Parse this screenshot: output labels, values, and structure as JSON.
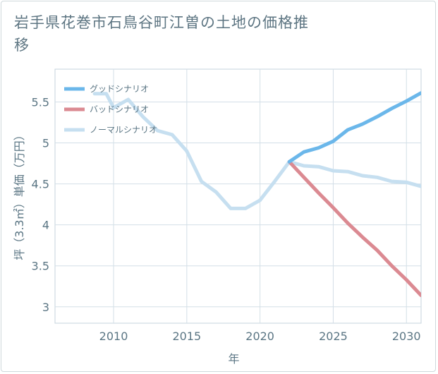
{
  "title": "岩手県花巻市石鳥谷町江曽の土地の価格推移",
  "chart_data": {
    "type": "line",
    "title": "岩手県花巻市石鳥谷町江曽の土地の価格推移",
    "xlabel": "年",
    "ylabel": "坪（3.3㎡）単価（万円）",
    "xlim": [
      2006,
      2031
    ],
    "ylim": [
      2.8,
      5.9
    ],
    "x_ticks": [
      2010,
      2015,
      2020,
      2025,
      2030
    ],
    "y_ticks": [
      3,
      3.5,
      4,
      4.5,
      5,
      5.5
    ],
    "x_tick_labels": [
      "2010",
      "2015",
      "2020",
      "2025",
      "2030"
    ],
    "y_tick_labels": [
      "3",
      "3.5",
      "4",
      "4.5",
      "5",
      "5.5"
    ],
    "grid": true,
    "legend_position": "top-left",
    "series": [
      {
        "name": "ノーマルシナリオ",
        "color": "#c6dff0",
        "x": [
          2008.7,
          2009.5,
          2010,
          2011,
          2012,
          2013,
          2014,
          2015,
          2016,
          2017,
          2018,
          2019,
          2020,
          2021,
          2022,
          2023,
          2024,
          2025,
          2026,
          2027,
          2028,
          2029,
          2030,
          2031
        ],
        "values": [
          5.6,
          5.6,
          5.43,
          5.53,
          5.32,
          5.15,
          5.1,
          4.9,
          4.53,
          4.4,
          4.2,
          4.2,
          4.3,
          4.53,
          4.77,
          4.72,
          4.71,
          4.66,
          4.65,
          4.6,
          4.58,
          4.53,
          4.52,
          4.47
        ]
      },
      {
        "name": "バッドシナリオ",
        "color": "#db8a92",
        "x": [
          2022,
          2023,
          2024,
          2025,
          2026,
          2027,
          2028,
          2029,
          2030,
          2031
        ],
        "values": [
          4.77,
          4.58,
          4.39,
          4.21,
          4.02,
          3.85,
          3.69,
          3.5,
          3.33,
          3.14
        ]
      },
      {
        "name": "グッドシナリオ",
        "color": "#6bb7ea",
        "x": [
          2022,
          2023,
          2024,
          2025,
          2026,
          2027,
          2028,
          2029,
          2030,
          2031
        ],
        "values": [
          4.77,
          4.89,
          4.94,
          5.02,
          5.16,
          5.23,
          5.32,
          5.42,
          5.51,
          5.61
        ]
      }
    ],
    "legend_order": [
      "グッドシナリオ",
      "バッドシナリオ",
      "ノーマルシナリオ"
    ]
  }
}
